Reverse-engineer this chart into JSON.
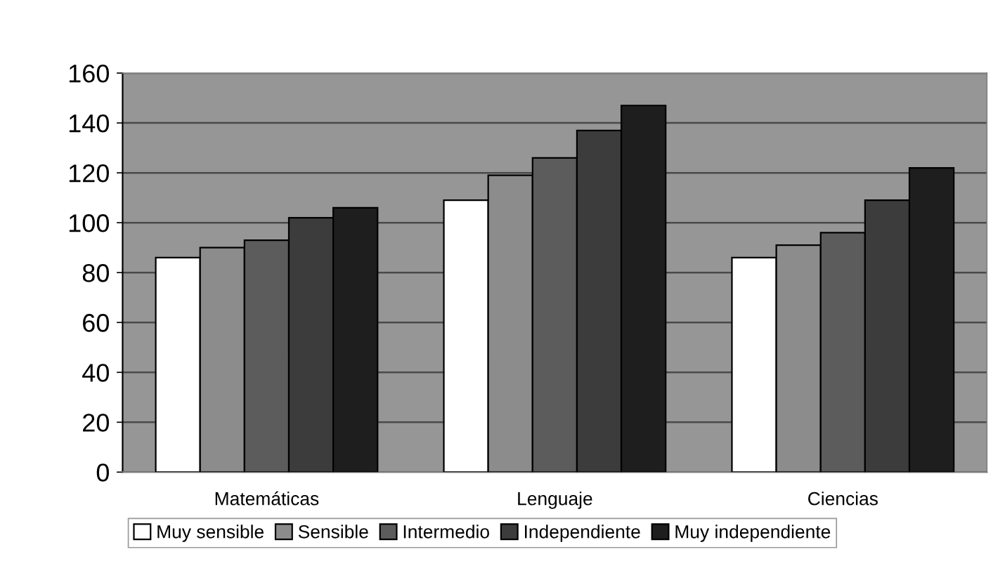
{
  "chart_data": {
    "type": "bar",
    "categories": [
      "Matemáticas",
      "Lenguaje",
      "Ciencias"
    ],
    "series": [
      {
        "name": "Muy sensible",
        "color": "#ffffff",
        "values": [
          86,
          109,
          86
        ]
      },
      {
        "name": "Sensible",
        "color": "#8c8c8c",
        "values": [
          90,
          119,
          91
        ]
      },
      {
        "name": "Intermedio",
        "color": "#5c5c5c",
        "values": [
          93,
          126,
          96
        ]
      },
      {
        "name": "Independiente",
        "color": "#3c3c3c",
        "values": [
          102,
          137,
          109
        ]
      },
      {
        "name": "Muy independiente",
        "color": "#1e1e1e",
        "values": [
          106,
          147,
          122
        ]
      }
    ],
    "ylim": [
      0,
      160
    ],
    "yticks": [
      0,
      20,
      40,
      60,
      80,
      100,
      120,
      140,
      160
    ],
    "grid": "y",
    "legend": "bottom"
  }
}
